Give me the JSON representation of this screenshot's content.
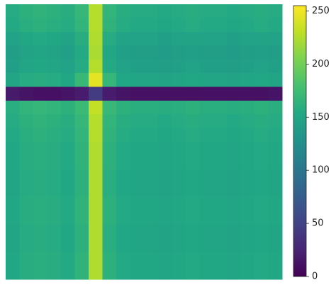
{
  "chart_data": {
    "type": "heatmap",
    "colormap": "viridis",
    "z": [
      [
        156,
        162,
        164,
        162,
        158,
        168,
        226,
        166,
        158,
        156,
        156,
        154,
        156,
        158,
        156,
        156,
        154,
        156,
        158,
        156
      ],
      [
        154,
        160,
        162,
        160,
        156,
        166,
        226,
        164,
        156,
        154,
        154,
        152,
        154,
        156,
        154,
        154,
        152,
        154,
        156,
        154
      ],
      [
        146,
        152,
        154,
        152,
        148,
        158,
        224,
        156,
        148,
        146,
        146,
        144,
        146,
        148,
        146,
        146,
        144,
        146,
        148,
        146
      ],
      [
        142,
        148,
        150,
        148,
        144,
        154,
        222,
        152,
        144,
        142,
        142,
        140,
        142,
        144,
        142,
        142,
        140,
        142,
        144,
        142
      ],
      [
        144,
        150,
        152,
        150,
        146,
        156,
        226,
        154,
        146,
        144,
        144,
        142,
        144,
        146,
        144,
        144,
        142,
        144,
        146,
        144
      ],
      [
        150,
        156,
        158,
        156,
        152,
        170,
        245,
        168,
        152,
        150,
        150,
        148,
        150,
        152,
        150,
        150,
        148,
        150,
        152,
        150
      ],
      [
        18,
        14,
        12,
        12,
        14,
        20,
        45,
        20,
        14,
        12,
        12,
        12,
        12,
        12,
        12,
        12,
        12,
        12,
        12,
        14
      ],
      [
        160,
        166,
        168,
        166,
        162,
        172,
        232,
        170,
        162,
        160,
        160,
        158,
        160,
        162,
        160,
        160,
        158,
        160,
        162,
        160
      ],
      [
        156,
        162,
        164,
        162,
        158,
        168,
        226,
        166,
        158,
        156,
        156,
        154,
        156,
        158,
        156,
        156,
        154,
        156,
        158,
        156
      ],
      [
        154,
        160,
        162,
        160,
        156,
        166,
        226,
        164,
        156,
        154,
        154,
        152,
        154,
        156,
        154,
        154,
        152,
        154,
        156,
        154
      ],
      [
        152,
        158,
        160,
        158,
        154,
        164,
        224,
        162,
        154,
        152,
        152,
        150,
        152,
        154,
        152,
        152,
        150,
        152,
        154,
        152
      ],
      [
        152,
        158,
        160,
        158,
        154,
        164,
        224,
        162,
        154,
        152,
        152,
        150,
        152,
        154,
        152,
        152,
        150,
        152,
        154,
        152
      ],
      [
        150,
        156,
        158,
        156,
        152,
        162,
        224,
        160,
        152,
        150,
        150,
        148,
        150,
        152,
        150,
        150,
        148,
        150,
        152,
        150
      ],
      [
        150,
        156,
        158,
        156,
        152,
        162,
        224,
        160,
        152,
        150,
        150,
        148,
        150,
        152,
        150,
        150,
        148,
        150,
        152,
        150
      ],
      [
        152,
        158,
        160,
        158,
        154,
        164,
        224,
        162,
        154,
        152,
        152,
        150,
        152,
        154,
        152,
        152,
        150,
        152,
        154,
        152
      ],
      [
        152,
        158,
        160,
        158,
        154,
        164,
        224,
        162,
        154,
        152,
        152,
        150,
        152,
        154,
        152,
        152,
        150,
        152,
        154,
        152
      ],
      [
        150,
        156,
        158,
        156,
        152,
        162,
        224,
        160,
        152,
        150,
        150,
        148,
        150,
        152,
        150,
        150,
        148,
        150,
        152,
        150
      ],
      [
        150,
        156,
        158,
        156,
        152,
        162,
        224,
        160,
        152,
        150,
        150,
        148,
        150,
        152,
        150,
        150,
        148,
        150,
        152,
        150
      ],
      [
        152,
        158,
        160,
        158,
        154,
        164,
        224,
        162,
        154,
        152,
        152,
        150,
        152,
        154,
        152,
        152,
        150,
        152,
        154,
        152
      ],
      [
        152,
        158,
        160,
        158,
        154,
        164,
        224,
        162,
        154,
        152,
        152,
        150,
        152,
        154,
        152,
        152,
        150,
        152,
        154,
        152
      ]
    ],
    "clim": [
      0,
      255
    ],
    "cticks": [
      0,
      50,
      100,
      150,
      200,
      250
    ]
  }
}
